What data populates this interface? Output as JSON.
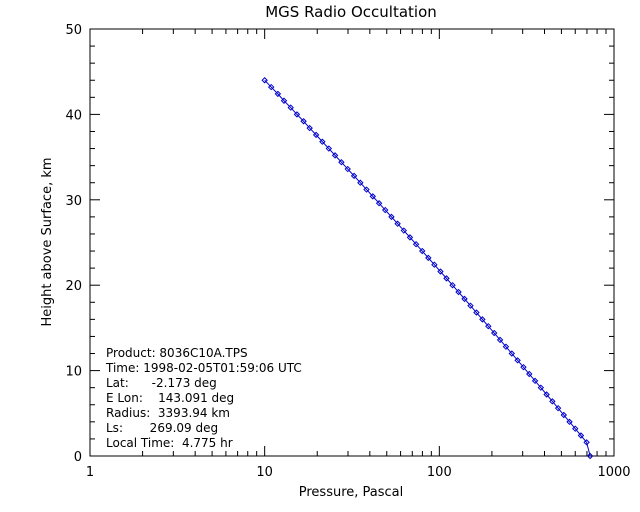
{
  "chart_data": {
    "type": "line",
    "title": "MGS Radio Occultation",
    "xlabel": "Pressure, Pascal",
    "ylabel": "Height above Surface, km",
    "x_scale": "log",
    "xlim": [
      1,
      1000
    ],
    "ylim": [
      0,
      50
    ],
    "x_ticks": [
      "1",
      "10",
      "100",
      "1000"
    ],
    "y_ticks": [
      "0",
      "10",
      "20",
      "30",
      "40",
      "50"
    ],
    "grid": false,
    "line_color": "#0000cc",
    "marker": "diamond",
    "series": [
      {
        "x": [
          10.0,
          10.9,
          11.9,
          12.9,
          14.1,
          15.3,
          16.7,
          18.1,
          19.7,
          21.4,
          23.3,
          25.3,
          27.5,
          29.9,
          32.5,
          35.3,
          38.3,
          41.6,
          45.2,
          49.0,
          53.2,
          57.7,
          62.6,
          67.9,
          73.6,
          79.8,
          86.5,
          93.7,
          101.5,
          109.9,
          119.0,
          128.8,
          139.4,
          150.8,
          163.1,
          176.4,
          190.7,
          206.1,
          222.7,
          240.6,
          259.9,
          280.7,
          303.1,
          327.2,
          353.2,
          381.2,
          411.3,
          443.7,
          478.6,
          516.1,
          556.5,
          600.0,
          646.7,
          697.0,
          730.0
        ],
        "y": [
          44.0,
          43.2,
          42.4,
          41.6,
          40.8,
          40.0,
          39.2,
          38.4,
          37.6,
          36.8,
          36.0,
          35.2,
          34.4,
          33.6,
          32.8,
          32.0,
          31.2,
          30.4,
          29.6,
          28.8,
          28.0,
          27.2,
          26.4,
          25.6,
          24.8,
          24.0,
          23.2,
          22.4,
          21.6,
          20.8,
          20.0,
          19.2,
          18.4,
          17.6,
          16.8,
          16.0,
          15.2,
          14.4,
          13.6,
          12.8,
          12.0,
          11.2,
          10.4,
          9.6,
          8.8,
          8.0,
          7.2,
          6.4,
          5.6,
          4.8,
          4.0,
          3.2,
          2.4,
          1.6,
          0.0
        ]
      }
    ],
    "annotations": [
      "Product: 8036C10A.TPS",
      "Time: 1998-02-05T01:59:06 UTC",
      "Lat:      -2.173 deg",
      "E Lon:    143.091 deg",
      "Radius:  3393.94 km",
      "Ls:       269.09 deg",
      "Local Time:  4.775 hr"
    ]
  }
}
